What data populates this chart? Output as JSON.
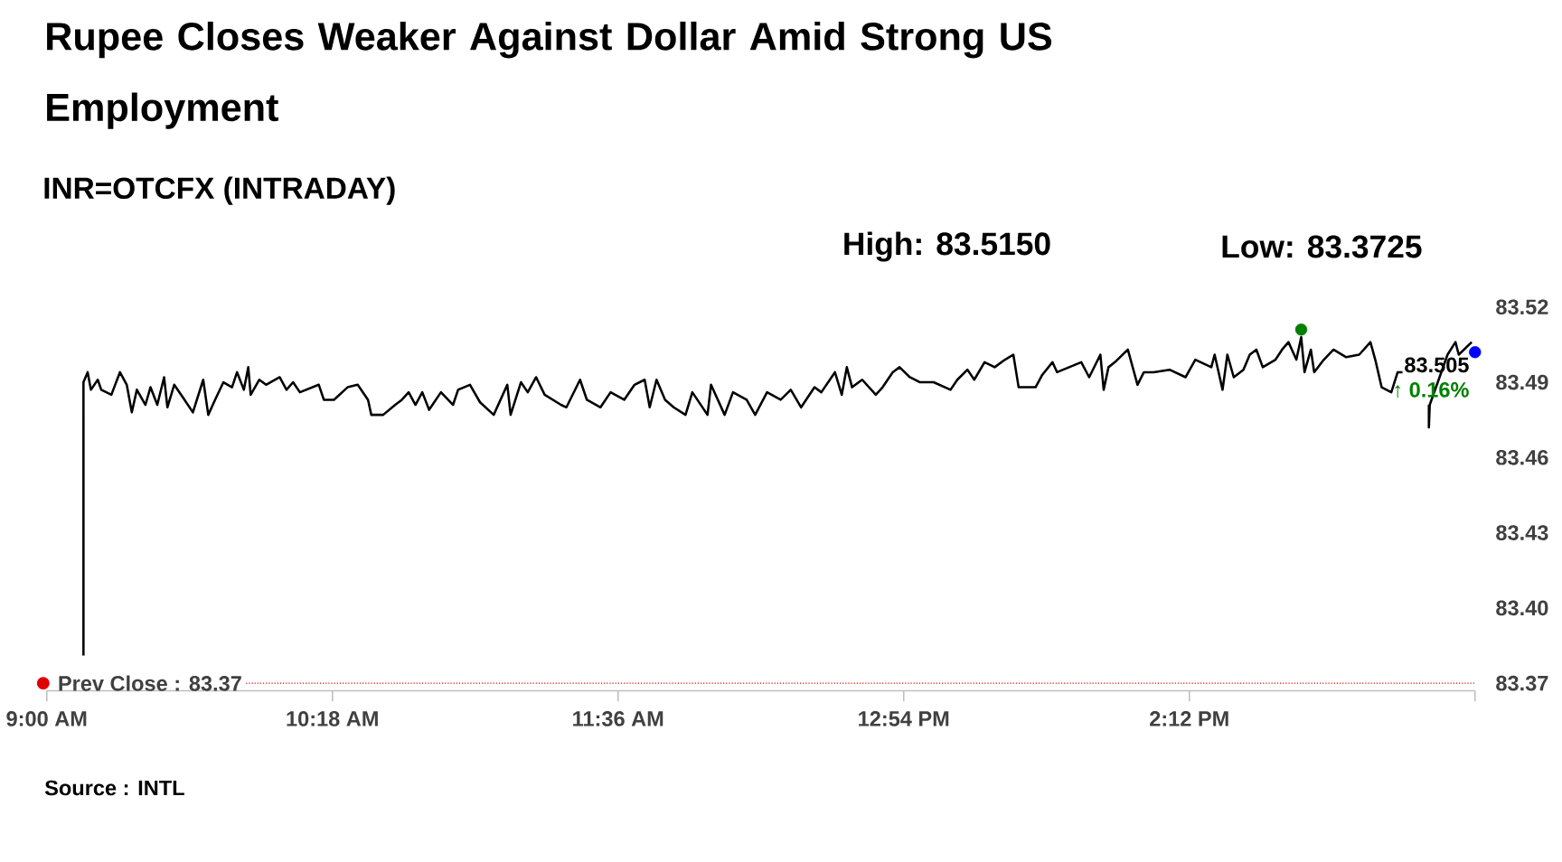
{
  "chart_data": {
    "type": "line",
    "title": "Rupee Closes Weaker Against Dollar Amid Strong US Employment",
    "subtitle": "INR=OTCFX (INTRADAY)",
    "annotations": [
      "High: 83.5150",
      "Low: 83.3725",
      {
        "text": "83.505",
        "x": 15.5,
        "y": 83.505
      },
      {
        "text": "↑ 0.16%",
        "x": 15.5,
        "y": 83.505
      },
      "Source : INTL"
    ],
    "xlim": [
      9,
      15.5
    ],
    "xticks": [
      {
        "value": 9,
        "label": "9:00 AM"
      },
      {
        "value": 10.3,
        "label": "10:18 AM"
      },
      {
        "value": 11.6,
        "label": "11:36 AM"
      },
      {
        "value": 12.9,
        "label": "12:54 PM"
      },
      {
        "value": 14.2,
        "label": "2:12 PM"
      },
      {
        "value": 15.5,
        "label": null
      }
    ],
    "ylim": [
      83.367,
      83.52
    ],
    "yticks": [
      83.37,
      {
        "value": 83.4,
        "label": "83.40"
      },
      83.43,
      83.46,
      83.49,
      83.52
    ],
    "ref_lines": [
      {
        "axis": "y",
        "value": 83.37,
        "label": "Prev Close : 83.37",
        "color": "#e00000",
        "line_style": "dotted"
      }
    ],
    "series": [
      {
        "type": "line",
        "color": "#000000",
        "x": [
          9.167,
          9.167,
          9.186,
          9.201,
          9.232,
          9.248,
          9.294,
          9.333,
          9.364,
          9.387,
          9.41,
          9.449,
          9.472,
          9.503,
          9.534,
          9.549,
          9.58,
          9.627,
          9.665,
          9.712,
          9.735,
          9.766,
          9.804,
          9.843,
          9.866,
          9.897,
          9.917,
          9.928,
          9.967,
          9.998,
          10.06,
          10.091,
          10.121,
          10.152,
          10.238,
          10.261,
          10.307,
          10.369,
          10.415,
          10.462,
          10.477,
          10.531,
          10.586,
          10.616,
          10.647,
          10.678,
          10.709,
          10.74,
          10.794,
          10.849,
          10.872,
          10.926,
          10.972,
          11.034,
          11.096,
          11.111,
          11.158,
          11.189,
          11.227,
          11.266,
          11.34,
          11.365,
          11.427,
          11.458,
          11.52,
          11.566,
          11.628,
          11.675,
          11.721,
          11.744,
          11.775,
          11.814,
          11.853,
          11.907,
          11.938,
          12.007,
          12.023,
          12.085,
          12.123,
          12.185,
          12.224,
          12.278,
          12.34,
          12.386,
          12.433,
          12.494,
          12.525,
          12.587,
          12.618,
          12.641,
          12.665,
          12.711,
          12.773,
          12.804,
          12.85,
          12.881,
          12.928,
          12.974,
          13.036,
          13.113,
          13.144,
          13.19,
          13.221,
          13.268,
          13.314,
          13.361,
          13.399,
          13.423,
          13.5,
          13.531,
          13.577,
          13.598,
          13.708,
          13.744,
          13.795,
          13.81,
          13.832,
          13.861,
          13.92,
          13.942,
          13.964,
          13.993,
          14.037,
          14.11,
          14.183,
          14.227,
          14.3,
          14.315,
          14.351,
          14.373,
          14.402,
          14.446,
          14.475,
          14.505,
          14.534,
          14.592,
          14.622,
          14.651,
          14.687,
          14.709,
          14.724,
          14.753,
          14.768,
          14.812,
          14.856,
          14.914,
          14.973,
          15.024,
          15.046,
          15.075,
          15.119,
          15.148,
          15.17,
          15.23,
          15.29,
          15.29,
          15.294,
          15.375,
          15.411,
          15.426,
          15.485
        ],
        "values": [
          83.381,
          83.49,
          83.494,
          83.487,
          83.491,
          83.487,
          83.485,
          83.494,
          83.489,
          83.478,
          83.487,
          83.481,
          83.488,
          83.481,
          83.492,
          83.48,
          83.489,
          83.483,
          83.478,
          83.491,
          83.477,
          83.483,
          83.49,
          83.488,
          83.494,
          83.487,
          83.496,
          83.485,
          83.491,
          83.489,
          83.492,
          83.487,
          83.49,
          83.486,
          83.489,
          83.483,
          83.483,
          83.488,
          83.489,
          83.483,
          83.477,
          83.477,
          83.481,
          83.483,
          83.486,
          83.481,
          83.486,
          83.479,
          83.486,
          83.481,
          83.487,
          83.489,
          83.482,
          83.477,
          83.489,
          83.477,
          83.49,
          83.486,
          83.492,
          83.485,
          83.481,
          83.48,
          83.491,
          83.483,
          83.48,
          83.486,
          83.483,
          83.489,
          83.491,
          83.48,
          83.491,
          83.483,
          83.48,
          83.477,
          83.486,
          83.477,
          83.489,
          83.477,
          83.486,
          83.483,
          83.477,
          83.486,
          83.483,
          83.487,
          83.48,
          83.488,
          83.486,
          83.494,
          83.485,
          83.496,
          83.488,
          83.491,
          83.485,
          83.488,
          83.494,
          83.496,
          83.492,
          83.49,
          83.49,
          83.487,
          83.491,
          83.495,
          83.491,
          83.498,
          83.496,
          83.499,
          83.501,
          83.488,
          83.488,
          83.493,
          83.498,
          83.494,
          83.498,
          83.492,
          83.501,
          83.487,
          83.496,
          83.498,
          83.503,
          83.496,
          83.489,
          83.494,
          83.494,
          83.495,
          83.492,
          83.499,
          83.496,
          83.501,
          83.487,
          83.501,
          83.492,
          83.495,
          83.501,
          83.503,
          83.496,
          83.499,
          83.503,
          83.506,
          83.499,
          83.508,
          83.494,
          83.503,
          83.494,
          83.499,
          83.503,
          83.5,
          83.501,
          83.506,
          83.499,
          83.488,
          83.486,
          83.494,
          83.494,
          null,
          83.481,
          83.472,
          83.481,
          83.501,
          83.506,
          83.501,
          83.506
        ]
      },
      {
        "type": "scatter",
        "color": "#008000",
        "marker": "circle",
        "x": [
          14.709
        ],
        "values": [
          83.511
        ]
      },
      {
        "type": "scatter",
        "color": "#0000ff",
        "marker": "circle",
        "x": [
          15.5
        ],
        "values": [
          83.502
        ]
      }
    ]
  }
}
